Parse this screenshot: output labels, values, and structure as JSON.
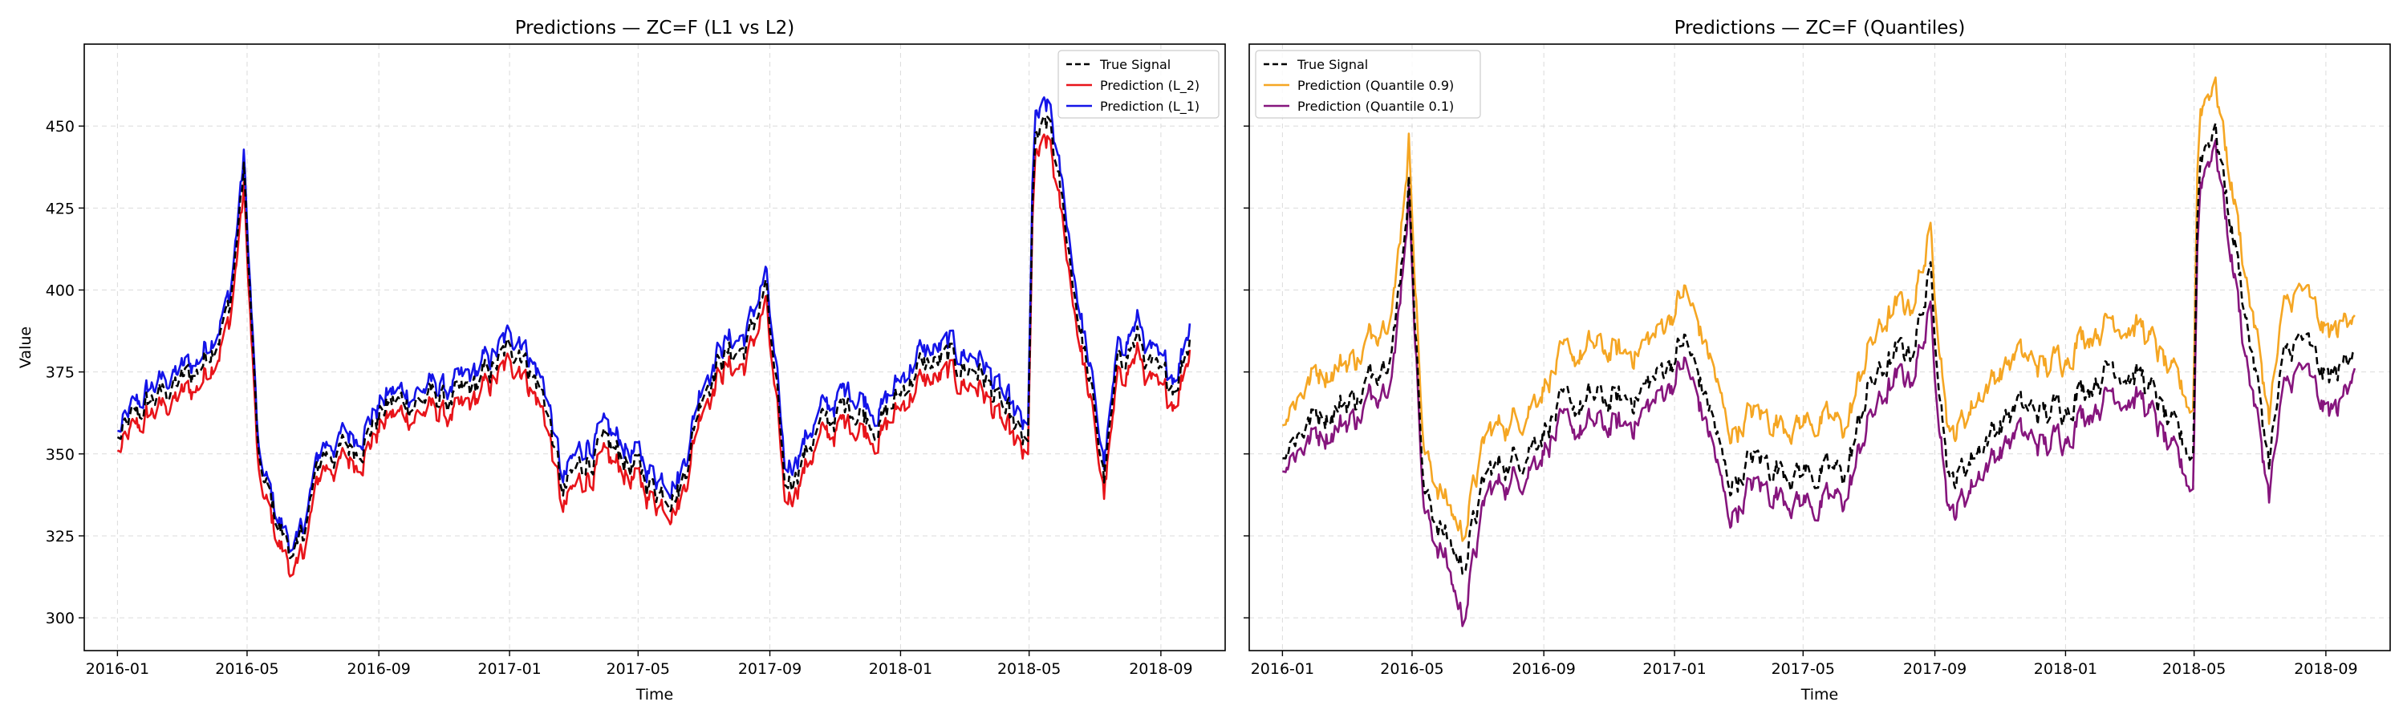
{
  "chart_data": [
    {
      "type": "line",
      "title": "Predictions — ZC=F (L1 vs L2)",
      "xlabel": "Time",
      "ylabel": "Value",
      "xlim": [
        "2015-12-01",
        "2018-10-31"
      ],
      "ylim": [
        290,
        475
      ],
      "x_ticks": [
        "2016-01",
        "2016-05",
        "2016-09",
        "2017-01",
        "2017-05",
        "2017-09",
        "2018-01",
        "2018-05",
        "2018-09"
      ],
      "y_ticks": [
        300,
        325,
        350,
        375,
        400,
        425,
        450
      ],
      "grid": true,
      "legend_position": "top-right",
      "anchor_dates": [
        "2016-01-01",
        "2016-02-01",
        "2016-03-15",
        "2016-04-15",
        "2016-04-28",
        "2016-05-12",
        "2016-06-01",
        "2016-06-17",
        "2016-07-10",
        "2016-08-10",
        "2016-09-10",
        "2016-10-15",
        "2016-11-15",
        "2016-12-15",
        "2017-01-10",
        "2017-02-05",
        "2017-02-20",
        "2017-03-15",
        "2017-04-15",
        "2017-05-15",
        "2017-06-10",
        "2017-07-01",
        "2017-07-20",
        "2017-08-10",
        "2017-08-28",
        "2017-09-15",
        "2017-10-15",
        "2017-11-15",
        "2017-12-15",
        "2018-01-15",
        "2018-02-15",
        "2018-03-15",
        "2018-04-15",
        "2018-04-30",
        "2018-05-05",
        "2018-05-20",
        "2018-06-15",
        "2018-07-10",
        "2018-07-25",
        "2018-08-10",
        "2018-09-01",
        "2018-09-15",
        "2018-09-30"
      ],
      "series": [
        {
          "name": "True Signal",
          "color": "#000000",
          "dash": true,
          "values": [
            354,
            366,
            375,
            395,
            436,
            345,
            327,
            318,
            350,
            352,
            365,
            367,
            366,
            375,
            384,
            365,
            337,
            350,
            350,
            340,
            340,
            372,
            380,
            382,
            401,
            340,
            357,
            365,
            360,
            376,
            378,
            376,
            358,
            350,
            443,
            450,
            395,
            343,
            380,
            385,
            370,
            373,
            388
          ]
        },
        {
          "name": "Prediction (L_2)",
          "color": "#e8141a",
          "dash": false,
          "values": [
            350,
            362,
            370,
            390,
            430,
            340,
            322,
            312,
            346,
            348,
            361,
            363,
            361,
            371,
            379,
            360,
            332,
            345,
            346,
            336,
            336,
            368,
            376,
            377,
            396,
            335,
            353,
            360,
            356,
            371,
            373,
            371,
            353,
            346,
            438,
            444,
            390,
            338,
            375,
            380,
            365,
            368,
            385
          ]
        },
        {
          "name": "Prediction (L_1)",
          "color": "#1414e8",
          "dash": false,
          "values": [
            356,
            370,
            378,
            398,
            440,
            347,
            329,
            320,
            353,
            356,
            368,
            370,
            370,
            379,
            388,
            369,
            341,
            355,
            354,
            344,
            344,
            375,
            384,
            386,
            405,
            345,
            361,
            370,
            364,
            380,
            382,
            380,
            362,
            355,
            450,
            455,
            400,
            347,
            384,
            390,
            374,
            376,
            393
          ]
        }
      ]
    },
    {
      "type": "line",
      "title": "Predictions — ZC=F (Quantiles)",
      "xlabel": "Time",
      "ylabel": "",
      "xlim": [
        "2015-12-01",
        "2018-10-31"
      ],
      "ylim": [
        290,
        475
      ],
      "x_ticks": [
        "2016-01",
        "2016-05",
        "2016-09",
        "2017-01",
        "2017-05",
        "2017-09",
        "2018-01",
        "2018-05",
        "2018-09"
      ],
      "y_ticks": [
        300,
        325,
        350,
        375,
        400,
        425,
        450
      ],
      "grid": true,
      "legend_position": "top-left",
      "anchor_dates": [
        "2016-01-01",
        "2016-02-01",
        "2016-03-15",
        "2016-04-15",
        "2016-04-28",
        "2016-05-12",
        "2016-06-01",
        "2016-06-17",
        "2016-07-10",
        "2016-08-10",
        "2016-09-10",
        "2016-10-15",
        "2016-11-15",
        "2016-12-15",
        "2017-01-10",
        "2017-02-05",
        "2017-02-20",
        "2017-03-15",
        "2017-04-15",
        "2017-05-15",
        "2017-06-10",
        "2017-07-01",
        "2017-07-20",
        "2017-08-10",
        "2017-08-28",
        "2017-09-15",
        "2017-10-15",
        "2017-11-15",
        "2017-12-15",
        "2018-01-15",
        "2018-02-15",
        "2018-03-15",
        "2018-04-15",
        "2018-04-30",
        "2018-05-05",
        "2018-05-20",
        "2018-06-15",
        "2018-07-10",
        "2018-07-25",
        "2018-08-10",
        "2018-09-01",
        "2018-09-15",
        "2018-09-30"
      ],
      "series": [
        {
          "name": "True Signal",
          "color": "#000000",
          "dash": true,
          "values": [
            352,
            362,
            368,
            388,
            433,
            338,
            325,
            316,
            344,
            350,
            362,
            366,
            366,
            373,
            385,
            362,
            340,
            348,
            346,
            344,
            344,
            370,
            378,
            382,
            404,
            340,
            354,
            364,
            362,
            370,
            378,
            373,
            354,
            350,
            440,
            451,
            400,
            348,
            380,
            385,
            372,
            375,
            389
          ]
        },
        {
          "name": "Prediction (Quantile 0.9)",
          "color": "#f5a623",
          "dash": false,
          "values": [
            362,
            375,
            380,
            400,
            446,
            350,
            336,
            326,
            356,
            362,
            376,
            382,
            380,
            386,
            400,
            378,
            356,
            362,
            360,
            360,
            358,
            382,
            392,
            396,
            416,
            354,
            370,
            380,
            376,
            386,
            392,
            388,
            370,
            364,
            455,
            465,
            412,
            362,
            395,
            400,
            386,
            388,
            399
          ]
        },
        {
          "name": "Prediction (Quantile 0.1)",
          "color": "#86157d",
          "dash": false,
          "values": [
            348,
            356,
            362,
            380,
            430,
            332,
            318,
            300,
            338,
            344,
            356,
            358,
            358,
            366,
            378,
            354,
            330,
            340,
            338,
            334,
            336,
            360,
            370,
            374,
            392,
            330,
            346,
            356,
            352,
            362,
            370,
            366,
            346,
            340,
            432,
            446,
            388,
            338,
            370,
            376,
            362,
            364,
            384
          ]
        }
      ]
    }
  ]
}
